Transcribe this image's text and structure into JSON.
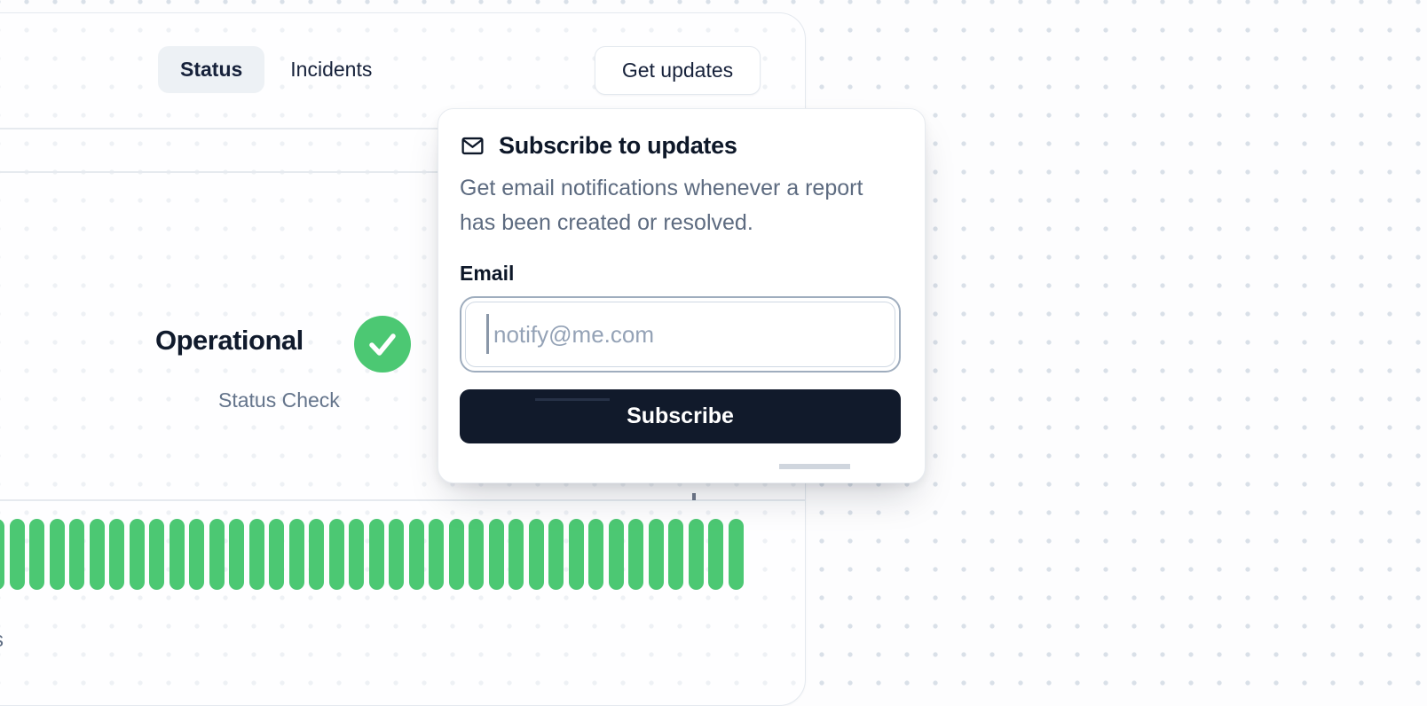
{
  "nav": {
    "tabs": [
      {
        "label": "Status",
        "active": true
      },
      {
        "label": "Incidents",
        "active": false
      }
    ],
    "get_updates_label": "Get updates"
  },
  "status": {
    "label": "Operational",
    "sublabel": "Status Check",
    "state_icon": "check-circle-icon"
  },
  "uptime": {
    "type": "bar",
    "bar_count": 38,
    "bar_state": "operational",
    "bar_color": "#4cc873"
  },
  "popover": {
    "icon": "envelope-icon",
    "title": "Subscribe to updates",
    "description": "Get email notifications whenever a report has been created or resolved.",
    "email_label": "Email",
    "email_placeholder": "notify@me.com",
    "subscribe_label": "Subscribe"
  },
  "fragment": {
    "text": "s"
  },
  "colors": {
    "green": "#4cc873",
    "navy": "#111a2b",
    "muted_text": "#5d6b80",
    "dot": "#d9e0e8"
  }
}
